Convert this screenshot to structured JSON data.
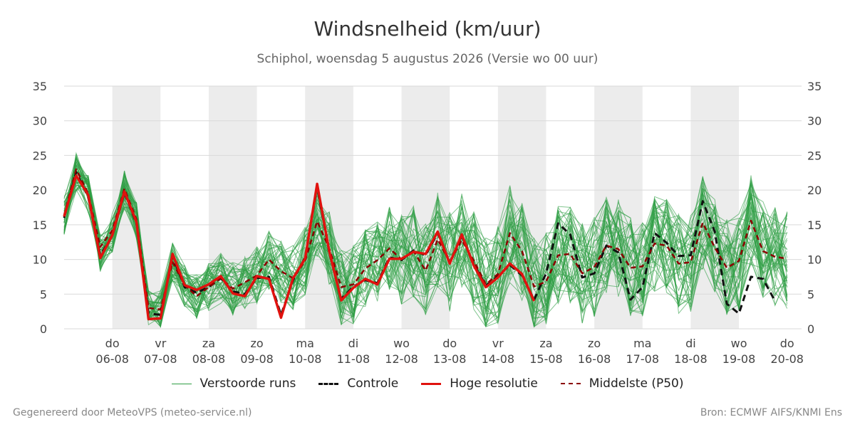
{
  "header": {
    "title": "Windsnelheid (km/uur)",
    "subtitle": "Schiphol, woensdag  5 augustus 2026 (Versie wo 00 uur)"
  },
  "legend": {
    "perturbed": "Verstoorde runs",
    "control": "Controle",
    "hires": "Hoge resolutie",
    "median": "Middelste (P50)"
  },
  "footer": {
    "left": "Gegenereerd door MeteoVPS (meteo-service.nl)",
    "right": "Bron: ECMWF AIFS/KNMI Ens"
  },
  "colors": {
    "perturbed": "#2e9e44",
    "control": "#111111",
    "hires": "#e0120e",
    "median": "#8b0000",
    "band": "#ececec",
    "grid": "#d9d9d9"
  },
  "chart_data": {
    "type": "line",
    "title": "Windsnelheid (km/uur)",
    "ylim": [
      0,
      35
    ],
    "yticks": [
      0,
      5,
      10,
      15,
      20,
      25,
      30,
      35
    ],
    "x_unit": "days since 05-08 00 uur",
    "xlim": [
      0,
      15.3
    ],
    "day_ticks": [
      {
        "day": "do",
        "date": "06-08",
        "x": 1
      },
      {
        "day": "vr",
        "date": "07-08",
        "x": 2
      },
      {
        "day": "za",
        "date": "08-08",
        "x": 3
      },
      {
        "day": "zo",
        "date": "09-08",
        "x": 4
      },
      {
        "day": "ma",
        "date": "10-08",
        "x": 5
      },
      {
        "day": "di",
        "date": "11-08",
        "x": 6
      },
      {
        "day": "wo",
        "date": "12-08",
        "x": 7
      },
      {
        "day": "do",
        "date": "13-08",
        "x": 8
      },
      {
        "day": "vr",
        "date": "14-08",
        "x": 9
      },
      {
        "day": "za",
        "date": "15-08",
        "x": 10
      },
      {
        "day": "zo",
        "date": "16-08",
        "x": 11
      },
      {
        "day": "ma",
        "date": "17-08",
        "x": 12
      },
      {
        "day": "di",
        "date": "18-08",
        "x": 13
      },
      {
        "day": "wo",
        "date": "19-08",
        "x": 14
      },
      {
        "day": "do",
        "date": "20-08",
        "x": 15
      }
    ],
    "shaded_days": [
      1,
      3,
      5,
      7,
      9,
      11,
      13
    ],
    "time_step_days": 0.25,
    "series": [
      {
        "name": "Hoge resolutie",
        "style": "hires",
        "values": [
          16.2,
          22.1,
          19.3,
          10.2,
          13.5,
          19.8,
          15.4,
          1.4,
          1.5,
          10.8,
          6.3,
          5.6,
          6.4,
          7.6,
          5.1,
          4.7,
          7.6,
          7.2,
          1.6,
          7.3,
          10.1,
          20.9,
          11.2,
          4.1,
          5.9,
          7.2,
          6.4,
          10.1,
          10.1,
          11.1,
          10.8,
          14.0,
          9.4,
          13.6,
          9.1,
          6.0,
          7.4,
          9.4,
          7.9,
          4.0
        ]
      },
      {
        "name": "Controle",
        "style": "control",
        "values": [
          16.0,
          22.6,
          19.0,
          10.6,
          13.4,
          19.6,
          15.2,
          2.2,
          2.0,
          10.5,
          6.0,
          5.2,
          6.0,
          7.3,
          5.4,
          5.0,
          7.3,
          7.5,
          2.0,
          7.0,
          10.3,
          20.5,
          11.0,
          4.3,
          6.1,
          7.0,
          6.6,
          10.3,
          9.9,
          11.3,
          10.6,
          13.8,
          9.6,
          13.4,
          9.3,
          6.2,
          7.6,
          9.2,
          7.7,
          4.2,
          8.0,
          15.2,
          13.6,
          7.4,
          8.0,
          12.0,
          11.0,
          4.2,
          6.0,
          13.8,
          12.4,
          10.5,
          10.6,
          18.4,
          14.0,
          3.6,
          2.2,
          7.5,
          7.2,
          4.0
        ]
      },
      {
        "name": "Middelste (P50)",
        "style": "median",
        "values": [
          16.4,
          23.0,
          19.5,
          11.8,
          14.2,
          20.2,
          15.8,
          3.0,
          2.8,
          9.6,
          6.3,
          4.7,
          6.0,
          7.3,
          5.8,
          6.7,
          7.7,
          10.0,
          8.3,
          7.3,
          9.8,
          15.5,
          11.6,
          6.0,
          6.4,
          8.7,
          9.9,
          11.6,
          10.0,
          11.2,
          8.4,
          12.9,
          9.6,
          12.8,
          9.8,
          6.4,
          7.9,
          13.8,
          11.2,
          6.1,
          6.8,
          10.6,
          10.8,
          8.0,
          8.9,
          12.0,
          11.5,
          8.8,
          9.0,
          12.3,
          12.0,
          9.4,
          9.6,
          15.3,
          11.7,
          8.8,
          9.8,
          15.6,
          11.2,
          10.4,
          10.1
        ]
      }
    ],
    "ensemble_members": 50
  }
}
